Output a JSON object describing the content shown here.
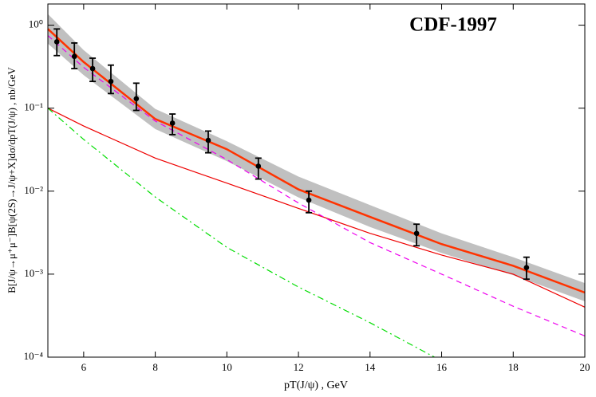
{
  "chart_data": {
    "type": "line",
    "title": "CDF-1997",
    "x_label": "pT(J/ψ) , GeV",
    "y_label": "B[J/ψ→μ⁺μ⁻]B[ψ(2S)→J/ψ+X]dσ/dpT(J/ψ) , nb/GeV",
    "xlim": [
      5,
      20
    ],
    "xticks": [
      6,
      8,
      10,
      12,
      14,
      16,
      18,
      20
    ],
    "ylim": [
      0.0001,
      1.8
    ],
    "y_log": true,
    "yticks": [
      {
        "value": 1,
        "label": "10⁰"
      },
      {
        "value": 0.1,
        "label": "10⁻¹"
      },
      {
        "value": 0.01,
        "label": "10⁻²"
      },
      {
        "value": 0.001,
        "label": "10⁻³"
      },
      {
        "value": 0.0001,
        "label": "10⁻⁴"
      }
    ],
    "band": {
      "color": "#c0c0c0",
      "x": [
        5,
        6,
        8,
        10,
        12,
        14,
        16,
        18,
        20
      ],
      "upper": [
        1.36,
        0.5,
        0.098,
        0.04,
        0.015,
        0.0068,
        0.0031,
        0.0016,
        0.00078
      ],
      "lower": [
        0.6,
        0.25,
        0.056,
        0.023,
        0.0084,
        0.0037,
        0.0018,
        0.00097,
        0.00047
      ]
    },
    "series": [
      {
        "color": "#ff3300",
        "style": "solid",
        "width": 2.5,
        "x": [
          5,
          6,
          8,
          10,
          12,
          14,
          16,
          18,
          20
        ],
        "values": [
          0.9,
          0.36,
          0.074,
          0.032,
          0.0105,
          0.0049,
          0.0023,
          0.00126,
          0.0006
        ]
      },
      {
        "color": "#ee0000",
        "style": "solid",
        "width": 1.2,
        "x": [
          5,
          6,
          8,
          10,
          12,
          14,
          16,
          18,
          20
        ],
        "values": [
          0.1,
          0.061,
          0.025,
          0.0125,
          0.0062,
          0.0031,
          0.0017,
          0.001,
          0.0004
        ]
      },
      {
        "color": "#ee00ee",
        "style": "dashed",
        "width": 1.2,
        "x": [
          5,
          6,
          8,
          10,
          12,
          14,
          16,
          18,
          20
        ],
        "values": [
          0.75,
          0.31,
          0.07,
          0.024,
          0.0072,
          0.0024,
          0.001,
          0.00041,
          0.00018
        ]
      },
      {
        "color": "#00dd00",
        "style": "dashdot",
        "width": 1.2,
        "x": [
          5,
          6,
          8,
          10,
          12,
          14,
          15.8
        ],
        "values": [
          0.1,
          0.042,
          0.0085,
          0.0021,
          0.0007,
          0.00026,
          0.0001
        ]
      }
    ],
    "points": {
      "color": "#000000",
      "x": [
        5.25,
        5.74,
        6.25,
        6.76,
        7.47,
        8.48,
        9.48,
        10.88,
        12.29,
        15.3,
        18.37
      ],
      "values": [
        0.63,
        0.42,
        0.3,
        0.21,
        0.13,
        0.066,
        0.041,
        0.02,
        0.0078,
        0.0031,
        0.0012
      ],
      "lower": [
        0.43,
        0.3,
        0.21,
        0.15,
        0.094,
        0.048,
        0.029,
        0.014,
        0.0055,
        0.0022,
        0.00087
      ],
      "upper": [
        0.9,
        0.61,
        0.4,
        0.33,
        0.2,
        0.085,
        0.053,
        0.025,
        0.01,
        0.004,
        0.0016
      ]
    }
  }
}
